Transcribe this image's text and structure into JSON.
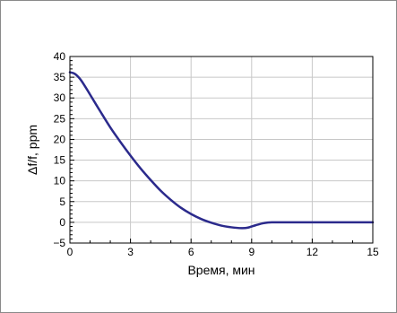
{
  "chart_data": {
    "type": "line",
    "title": "",
    "xlabel": "Время, мин",
    "ylabel": "Δf/f, ppm",
    "xlim": [
      0,
      15
    ],
    "ylim": [
      -5,
      40
    ],
    "x_ticks": [
      0,
      3,
      6,
      9,
      12,
      15
    ],
    "y_ticks": [
      -5,
      0,
      5,
      10,
      15,
      20,
      25,
      30,
      35,
      40
    ],
    "grid": true,
    "legend": "none",
    "series": [
      {
        "color": "#2b2a8c",
        "x": [
          0,
          0.25,
          0.5,
          0.75,
          1,
          1.5,
          2,
          2.5,
          3,
          3.5,
          4,
          4.5,
          5,
          5.5,
          6,
          6.5,
          7,
          7.5,
          8,
          8.5,
          8.8,
          9.2,
          9.6,
          10,
          11,
          12,
          13,
          14,
          15
        ],
        "y": [
          36.2,
          35.8,
          34.6,
          32.8,
          30.8,
          26.8,
          22.9,
          19.4,
          16.1,
          13,
          10.2,
          7.6,
          5.4,
          3.5,
          2,
          0.8,
          -0.1,
          -0.8,
          -1.2,
          -1.4,
          -1.3,
          -0.7,
          -0.2,
          0,
          0,
          0,
          0,
          0,
          0
        ]
      }
    ]
  }
}
